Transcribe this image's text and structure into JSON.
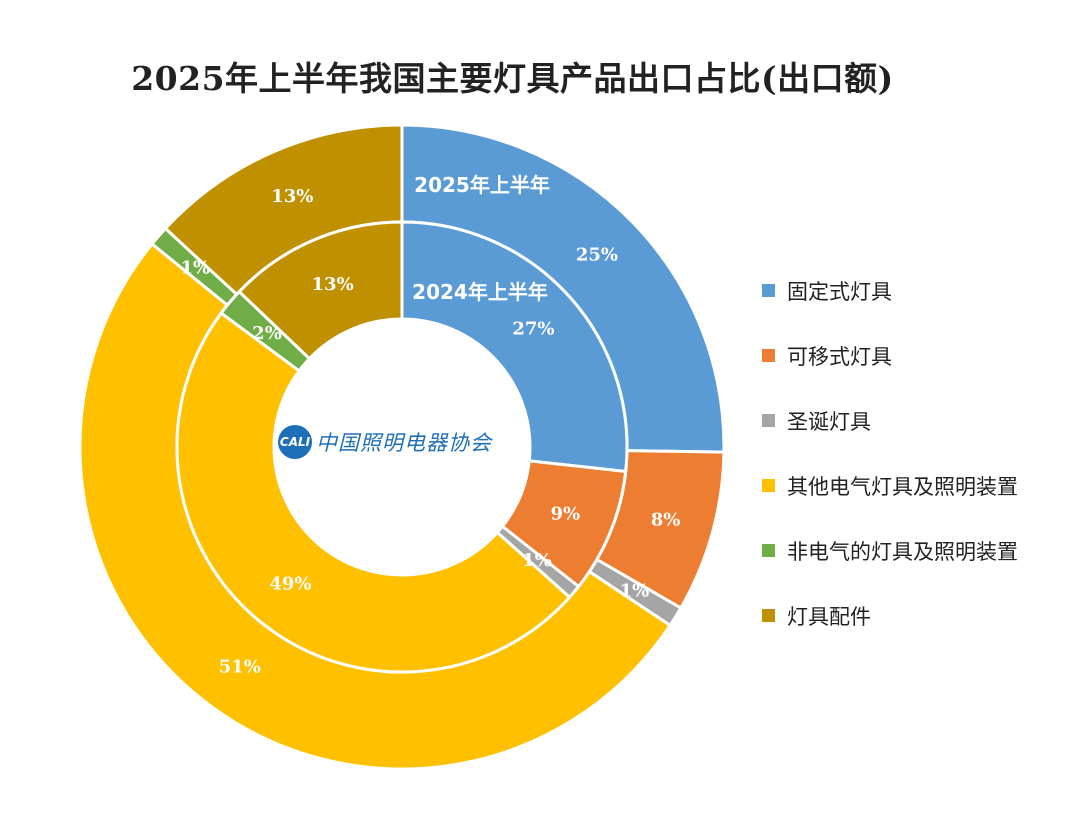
{
  "chart_data": {
    "type": "donut",
    "title": "2025年上半年我国主要灯具产品出口占比(出口额)",
    "categories": [
      "固定式灯具",
      "可移式灯具",
      "圣诞灯具",
      "其他电气灯具及照明装置",
      "非电气的灯具及照明装置",
      "灯具配件"
    ],
    "colors": [
      "#5b9bd5",
      "#ed7d31",
      "#a5a5a5",
      "#ffc000",
      "#70ad47",
      "#bf9000"
    ],
    "series": [
      {
        "name": "2025年上半年",
        "ring": "outer",
        "values": [
          25,
          8,
          1,
          51,
          1,
          13
        ],
        "labels": [
          "25%",
          "8%",
          "1%",
          "51%",
          "1%",
          "13%"
        ]
      },
      {
        "name": "2024年上半年",
        "ring": "inner",
        "values": [
          27,
          9,
          1,
          49,
          2,
          13
        ],
        "labels": [
          "27%",
          "9%",
          "1%",
          "49%",
          "2%",
          "13%"
        ]
      }
    ],
    "legend_position": "right"
  },
  "logo": {
    "badge": "CALI",
    "text": "中国照明电器协会"
  }
}
